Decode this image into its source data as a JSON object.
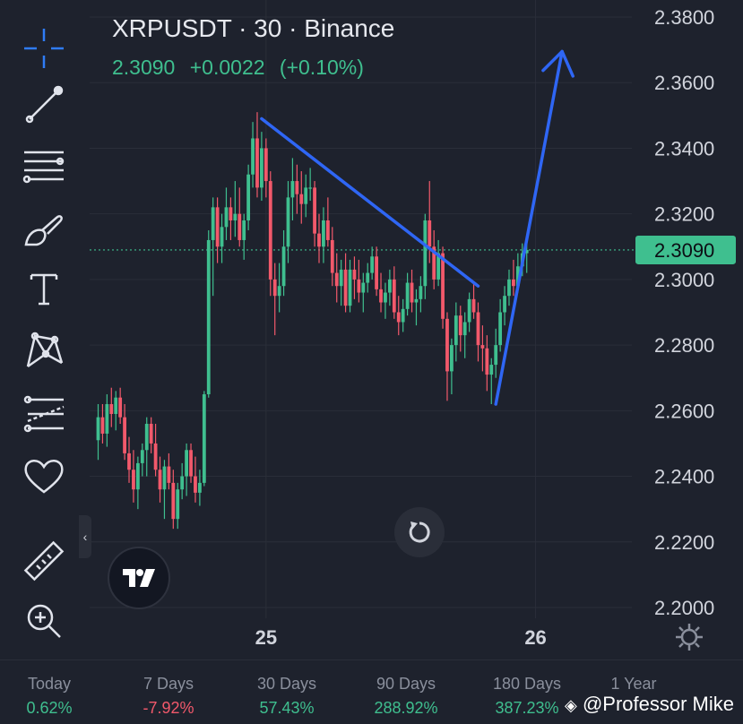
{
  "header": {
    "title": "XRPUSDT · 30 · Binance",
    "price": "2.3090",
    "change": "+0.0022",
    "change_pct": "(+0.10%)"
  },
  "price_label": "2.3090",
  "colors": {
    "up": "#3fbf8f",
    "down": "#f2596b",
    "drawing": "#2f66f4",
    "background": "#1e222d",
    "grid": "#2a2e39"
  },
  "toolbar": {
    "tools": [
      "crosshair-icon",
      "trend-line-icon",
      "fib-retracement-icon",
      "brush-icon",
      "text-icon",
      "pattern-icon",
      "forecast-icon",
      "favorites-heart-icon",
      "ruler-icon",
      "zoom-in-icon"
    ]
  },
  "chart_data": {
    "type": "candlestick",
    "symbol": "XRPUSDT",
    "interval": "30",
    "exchange": "Binance",
    "last_price": 2.309,
    "y_axis": {
      "ylim": [
        2.2,
        2.385
      ],
      "ticks": [
        "2.3800",
        "2.3600",
        "2.3400",
        "2.3200",
        "2.3000",
        "2.2800",
        "2.2600",
        "2.2400",
        "2.2200",
        "2.2000"
      ]
    },
    "x_axis": {
      "tick_labels": [
        "25",
        "26"
      ]
    },
    "grid": true,
    "candles": [
      [
        2.251,
        2.262,
        2.245,
        2.258
      ],
      [
        2.258,
        2.262,
        2.25,
        2.253
      ],
      [
        2.253,
        2.265,
        2.249,
        2.262
      ],
      [
        2.262,
        2.267,
        2.255,
        2.259
      ],
      [
        2.259,
        2.266,
        2.254,
        2.264
      ],
      [
        2.264,
        2.267,
        2.256,
        2.258
      ],
      [
        2.258,
        2.262,
        2.245,
        2.247
      ],
      [
        2.247,
        2.252,
        2.238,
        2.242
      ],
      [
        2.242,
        2.248,
        2.232,
        2.236
      ],
      [
        2.236,
        2.246,
        2.23,
        2.244
      ],
      [
        2.244,
        2.25,
        2.24,
        2.248
      ],
      [
        2.248,
        2.258,
        2.24,
        2.256
      ],
      [
        2.256,
        2.258,
        2.247,
        2.25
      ],
      [
        2.25,
        2.256,
        2.24,
        2.242
      ],
      [
        2.242,
        2.246,
        2.232,
        2.236
      ],
      [
        2.236,
        2.245,
        2.227,
        2.243
      ],
      [
        2.243,
        2.247,
        2.236,
        2.238
      ],
      [
        2.238,
        2.242,
        2.224,
        2.227
      ],
      [
        2.227,
        2.238,
        2.224,
        2.236
      ],
      [
        2.236,
        2.244,
        2.233,
        2.24
      ],
      [
        2.24,
        2.25,
        2.234,
        2.248
      ],
      [
        2.248,
        2.25,
        2.238,
        2.24
      ],
      [
        2.24,
        2.246,
        2.232,
        2.235
      ],
      [
        2.235,
        2.242,
        2.231,
        2.238
      ],
      [
        2.238,
        2.266,
        2.237,
        2.265
      ],
      [
        2.265,
        2.315,
        2.264,
        2.312
      ],
      [
        2.312,
        2.325,
        2.295,
        2.322
      ],
      [
        2.322,
        2.325,
        2.305,
        2.31
      ],
      [
        2.31,
        2.32,
        2.305,
        2.316
      ],
      [
        2.316,
        2.328,
        2.312,
        2.322
      ],
      [
        2.322,
        2.325,
        2.312,
        2.318
      ],
      [
        2.318,
        2.33,
        2.313,
        2.32
      ],
      [
        2.32,
        2.328,
        2.31,
        2.312
      ],
      [
        2.312,
        2.32,
        2.306,
        2.318
      ],
      [
        2.318,
        2.335,
        2.315,
        2.332
      ],
      [
        2.332,
        2.348,
        2.328,
        2.343
      ],
      [
        2.343,
        2.351,
        2.325,
        2.328
      ],
      [
        2.328,
        2.345,
        2.324,
        2.34
      ],
      [
        2.34,
        2.343,
        2.325,
        2.33
      ],
      [
        2.33,
        2.333,
        2.295,
        2.3
      ],
      [
        2.3,
        2.305,
        2.283,
        2.295
      ],
      [
        2.295,
        2.305,
        2.29,
        2.298
      ],
      [
        2.298,
        2.315,
        2.295,
        2.31
      ],
      [
        2.31,
        2.33,
        2.305,
        2.325
      ],
      [
        2.325,
        2.337,
        2.318,
        2.33
      ],
      [
        2.33,
        2.335,
        2.32,
        2.326
      ],
      [
        2.326,
        2.333,
        2.317,
        2.323
      ],
      [
        2.323,
        2.332,
        2.319,
        2.328
      ],
      [
        2.328,
        2.334,
        2.324,
        2.328
      ],
      [
        2.328,
        2.33,
        2.31,
        2.314
      ],
      [
        2.314,
        2.32,
        2.305,
        2.31
      ],
      [
        2.31,
        2.322,
        2.305,
        2.318
      ],
      [
        2.318,
        2.325,
        2.31,
        2.312
      ],
      [
        2.312,
        2.316,
        2.298,
        2.302
      ],
      [
        2.302,
        2.308,
        2.293,
        2.298
      ],
      [
        2.298,
        2.306,
        2.292,
        2.303
      ],
      [
        2.303,
        2.308,
        2.29,
        2.292
      ],
      [
        2.292,
        2.306,
        2.29,
        2.303
      ],
      [
        2.303,
        2.307,
        2.294,
        2.3
      ],
      [
        2.3,
        2.306,
        2.293,
        2.296
      ],
      [
        2.296,
        2.302,
        2.29,
        2.299
      ],
      [
        2.299,
        2.305,
        2.296,
        2.302
      ],
      [
        2.302,
        2.31,
        2.3,
        2.307
      ],
      [
        2.307,
        2.31,
        2.295,
        2.297
      ],
      [
        2.297,
        2.302,
        2.29,
        2.293
      ],
      [
        2.293,
        2.299,
        2.288,
        2.296
      ],
      [
        2.296,
        2.303,
        2.292,
        2.3
      ],
      [
        2.3,
        2.304,
        2.288,
        2.29
      ],
      [
        2.29,
        2.295,
        2.283,
        2.287
      ],
      [
        2.287,
        2.294,
        2.284,
        2.291
      ],
      [
        2.291,
        2.302,
        2.289,
        2.299
      ],
      [
        2.299,
        2.303,
        2.29,
        2.293
      ],
      [
        2.293,
        2.297,
        2.286,
        2.294
      ],
      [
        2.294,
        2.301,
        2.29,
        2.298
      ],
      [
        2.298,
        2.32,
        2.294,
        2.318
      ],
      [
        2.318,
        2.33,
        2.305,
        2.31
      ],
      [
        2.31,
        2.315,
        2.297,
        2.3
      ],
      [
        2.3,
        2.312,
        2.298,
        2.308
      ],
      [
        2.308,
        2.31,
        2.285,
        2.288
      ],
      [
        2.288,
        2.29,
        2.263,
        2.272
      ],
      [
        2.272,
        2.282,
        2.265,
        2.28
      ],
      [
        2.28,
        2.293,
        2.275,
        2.289
      ],
      [
        2.289,
        2.292,
        2.278,
        2.283
      ],
      [
        2.283,
        2.29,
        2.276,
        2.287
      ],
      [
        2.287,
        2.296,
        2.284,
        2.294
      ],
      [
        2.294,
        2.299,
        2.288,
        2.29
      ],
      [
        2.29,
        2.293,
        2.275,
        2.28
      ],
      [
        2.28,
        2.286,
        2.272,
        2.279
      ],
      [
        2.279,
        2.283,
        2.266,
        2.271
      ],
      [
        2.271,
        2.276,
        2.262,
        2.274
      ],
      [
        2.274,
        2.285,
        2.27,
        2.28
      ],
      [
        2.28,
        2.294,
        2.278,
        2.29
      ],
      [
        2.29,
        2.298,
        2.286,
        2.295
      ],
      [
        2.295,
        2.303,
        2.292,
        2.3
      ],
      [
        2.3,
        2.306,
        2.295,
        2.298
      ],
      [
        2.298,
        2.308,
        2.296,
        2.304
      ],
      [
        2.304,
        2.311,
        2.301,
        2.308
      ],
      [
        2.308,
        2.313,
        2.302,
        2.309
      ]
    ],
    "drawings": [
      {
        "type": "trend-line",
        "from": {
          "candle": 37,
          "price": 2.349
        },
        "to": {
          "candle": 86,
          "price": 2.298
        }
      },
      {
        "type": "arrow",
        "from": {
          "candle": 90,
          "price": 2.262
        },
        "to": {
          "candle": 105,
          "price": 2.3695
        }
      }
    ]
  },
  "periods": [
    {
      "label": "Today",
      "value": "0.62%",
      "dir": "pos"
    },
    {
      "label": "7 Days",
      "value": "-7.92%",
      "dir": "neg"
    },
    {
      "label": "30 Days",
      "value": "57.43%",
      "dir": "pos"
    },
    {
      "label": "90 Days",
      "value": "288.92%",
      "dir": "pos"
    },
    {
      "label": "180 Days",
      "value": "387.23%",
      "dir": "pos"
    },
    {
      "label": "1 Year",
      "value": "",
      "dir": "pos"
    }
  ],
  "watermark": "@Professor Mike"
}
